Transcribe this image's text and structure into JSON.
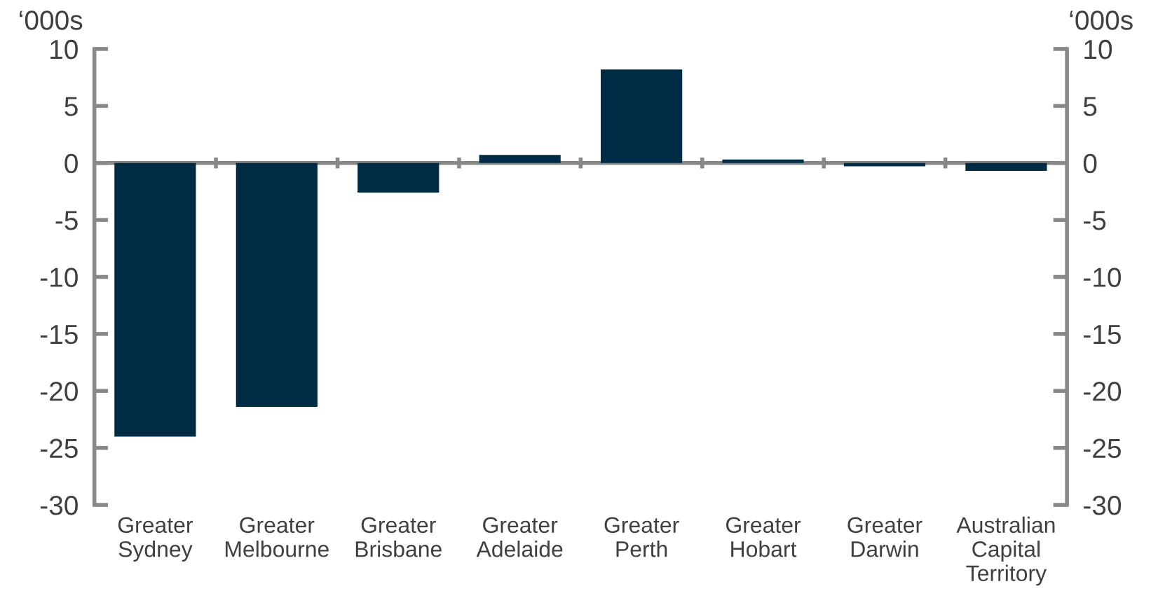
{
  "chart_data": {
    "type": "bar",
    "categories": [
      "Greater\nSydney",
      "Greater\nMelbourne",
      "Greater\nBrisbane",
      "Greater\nAdelaide",
      "Greater\nPerth",
      "Greater\nHobart",
      "Greater\nDarwin",
      "Australian\nCapital\nTerritory"
    ],
    "values": [
      -24.0,
      -21.4,
      -2.6,
      0.7,
      8.2,
      0.3,
      -0.3,
      -0.7
    ],
    "color": "#002b45",
    "ylabel": "‘000s",
    "y2label": "‘000s",
    "ylim": [
      -30,
      10
    ],
    "yticks": [
      -30,
      -25,
      -20,
      -15,
      -10,
      -5,
      0,
      5,
      10
    ],
    "y2lim": [
      -30,
      10
    ],
    "y2ticks": [
      -30,
      -25,
      -20,
      -15,
      -10,
      -5,
      0,
      5,
      10
    ],
    "ref_lines": [
      {
        "axis": "y",
        "value": 0,
        "color": "#888888"
      }
    ],
    "legend": false
  }
}
